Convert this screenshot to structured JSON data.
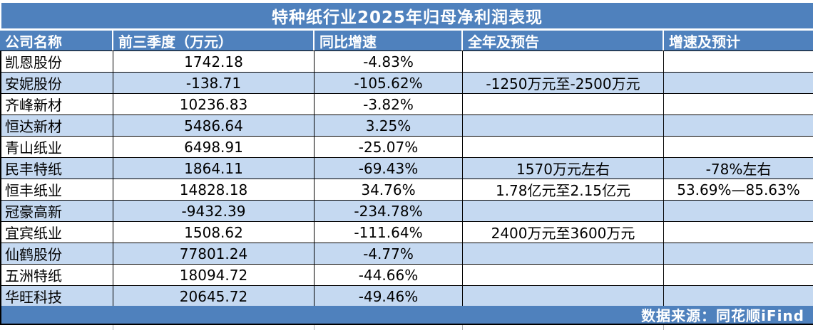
{
  "title": "特种纸行业2025年归母净利润表现",
  "colors": {
    "header_blue": "#4f81bd",
    "row_alt_blue": "#c5d9f1",
    "row_white": "#ffffff",
    "grid_black": "#000000",
    "text_white": "#ffffff"
  },
  "chart_data": {
    "type": "table",
    "title": "特种纸行业2025年归母净利润表现",
    "columns": [
      "公司名称",
      "前三季度（万元）",
      "同比增速",
      "全年及预告",
      "增速及预计"
    ],
    "rows": [
      {
        "company": "凯恩股份",
        "q3": "1742.18",
        "yoy": "-4.83%",
        "forecast": "",
        "growth": ""
      },
      {
        "company": "安妮股份",
        "q3": "-138.71",
        "yoy": "-105.62%",
        "forecast": "-1250万元至-2500万元",
        "growth": ""
      },
      {
        "company": "齐峰新材",
        "q3": "10236.83",
        "yoy": "-3.82%",
        "forecast": "",
        "growth": ""
      },
      {
        "company": "恒达新材",
        "q3": "5486.64",
        "yoy": "3.25%",
        "forecast": "",
        "growth": ""
      },
      {
        "company": "青山纸业",
        "q3": "6498.91",
        "yoy": "-25.07%",
        "forecast": "",
        "growth": ""
      },
      {
        "company": "民丰特纸",
        "q3": "1864.11",
        "yoy": "-69.43%",
        "forecast": "1570万元左右",
        "growth": "-78%左右"
      },
      {
        "company": "恒丰纸业",
        "q3": "14828.18",
        "yoy": "34.76%",
        "forecast": "1.78亿元至2.15亿元",
        "growth": "53.69%—85.63%"
      },
      {
        "company": "冠豪高新",
        "q3": "-9432.39",
        "yoy": "-234.78%",
        "forecast": "",
        "growth": ""
      },
      {
        "company": "宜宾纸业",
        "q3": "1508.62",
        "yoy": "-111.64%",
        "forecast": "2400万元至3600万元",
        "growth": ""
      },
      {
        "company": "仙鹤股份",
        "q3": "77801.24",
        "yoy": "-4.77%",
        "forecast": "",
        "growth": ""
      },
      {
        "company": "五洲特纸",
        "q3": "18094.72",
        "yoy": "-44.66%",
        "forecast": "",
        "growth": ""
      },
      {
        "company": "华旺科技",
        "q3": "20645.72",
        "yoy": "-49.46%",
        "forecast": "",
        "growth": ""
      }
    ],
    "source_note": "数据来源：同花顺iFind"
  }
}
